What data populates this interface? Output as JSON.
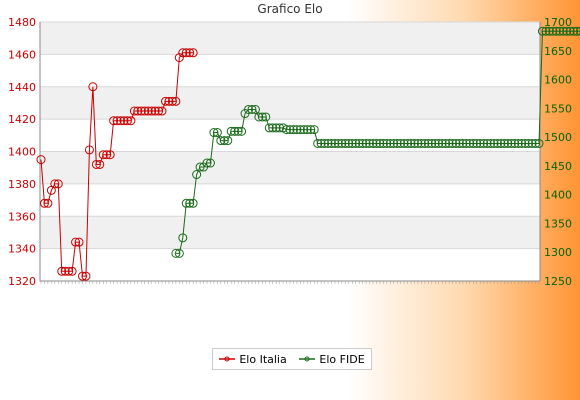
{
  "title": "Grafico Elo",
  "colors": {
    "italia": "#cc0000",
    "fide": "#1a6b1a"
  },
  "chart_data": {
    "type": "line",
    "title": "Grafico Elo",
    "x_count": 145,
    "series": [
      {
        "name": "Elo Italia",
        "axis": "left",
        "ylim": [
          1320,
          1480
        ],
        "values": [
          1395,
          1368,
          1368,
          1376,
          1380,
          1380,
          1326,
          1326,
          1326,
          1326,
          1344,
          1344,
          1323,
          1323,
          1401,
          1440,
          1392,
          1392,
          1398,
          1398,
          1398,
          1419,
          1419,
          1419,
          1419,
          1419,
          1419,
          1425,
          1425,
          1425,
          1425,
          1425,
          1425,
          1425,
          1425,
          1425,
          1431,
          1431,
          1431,
          1431,
          1458,
          1461,
          1461,
          1461,
          1461
        ]
      },
      {
        "name": "Elo FIDE",
        "axis": "right",
        "ylim": [
          1250,
          1700
        ],
        "start_index": 39,
        "values": [
          1298,
          1298,
          1325,
          1385,
          1385,
          1385,
          1435,
          1448,
          1448,
          1455,
          1455,
          1508,
          1508,
          1494,
          1494,
          1494,
          1510,
          1510,
          1510,
          1510,
          1541,
          1548,
          1548,
          1548,
          1535,
          1535,
          1535,
          1516,
          1516,
          1516,
          1516,
          1516,
          1513,
          1513,
          1513,
          1513,
          1513,
          1513,
          1513,
          1513,
          1513,
          1489,
          1489,
          1489,
          1489,
          1489,
          1489,
          1489,
          1489,
          1489,
          1489,
          1489,
          1489,
          1489,
          1489,
          1489,
          1489,
          1489,
          1489,
          1489,
          1489,
          1489,
          1489,
          1489,
          1489,
          1489,
          1489,
          1489,
          1489,
          1489,
          1489,
          1489,
          1489,
          1489,
          1489,
          1489,
          1489,
          1489,
          1489,
          1489,
          1489,
          1489,
          1489,
          1489,
          1489,
          1489,
          1489,
          1489,
          1489,
          1489,
          1489,
          1489,
          1489,
          1489,
          1489,
          1489,
          1489,
          1489,
          1489,
          1489,
          1489,
          1489,
          1489,
          1489,
          1489,
          1489,
          1684,
          1684,
          1684,
          1684,
          1684,
          1684,
          1684,
          1684,
          1684,
          1684,
          1684,
          1684,
          1684,
          1684,
          1684,
          1684,
          1684,
          1684,
          1684,
          1684,
          1684,
          1684,
          1684,
          1684,
          1684,
          1684,
          1684,
          1684,
          1684,
          1684,
          1684,
          1684,
          1684,
          1684,
          1684,
          1684
        ]
      }
    ],
    "yticks_left": [
      1320,
      1340,
      1360,
      1380,
      1400,
      1420,
      1440,
      1460,
      1480
    ],
    "yticks_right": [
      1250,
      1300,
      1350,
      1400,
      1450,
      1500,
      1550,
      1600,
      1650,
      1700
    ],
    "grid": true,
    "legend_position": "bottom"
  },
  "legend": {
    "italia": "Elo Italia",
    "fide": "Elo FIDE"
  }
}
